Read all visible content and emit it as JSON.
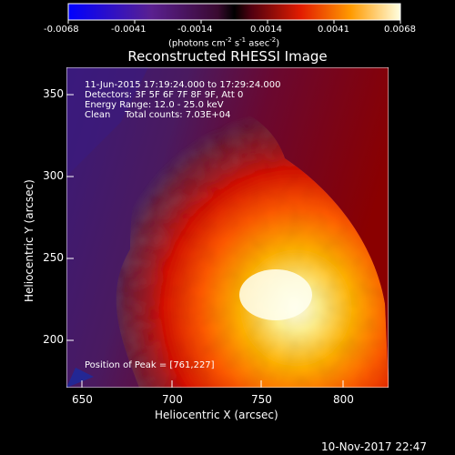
{
  "colorbar": {
    "ticks": [
      "-0.0068",
      "-0.0041",
      "-0.0014",
      "0.0014",
      "0.0041",
      "0.0068"
    ],
    "units_prefix": "(photons cm",
    "units_exp1": "-2",
    "units_mid": " s",
    "units_exp2": "-1",
    "units_mid2": " asec",
    "units_exp3": "-2",
    "units_suffix": ")"
  },
  "plot": {
    "title": "Reconstructed RHESSI Image",
    "info_lines": [
      "11-Jun-2015 17:19:24.000 to 17:29:24.000",
      "Detectors: 3F 5F 6F 7F 8F 9F, Att 0",
      "Energy Range: 12.0 - 25.0 keV",
      "Clean     Total counts: 7.03E+04"
    ],
    "peak_text": "Position of Peak = [761,227]",
    "xlabel": "Heliocentric X (arcsec)",
    "ylabel": "Heliocentric Y (arcsec)",
    "xticks": [
      "650",
      "700",
      "750",
      "800"
    ],
    "yticks": [
      "350",
      "300",
      "250",
      "200"
    ]
  },
  "timestamp": "10-Nov-2017 22:47",
  "colors": {
    "cb_low": "#0000ff",
    "cb_mid_low": "#5a1a8a",
    "cb_mid": "#000000",
    "cb_red": "#e21c00",
    "cb_orange": "#ff9a00",
    "cb_high": "#ffffe0"
  }
}
